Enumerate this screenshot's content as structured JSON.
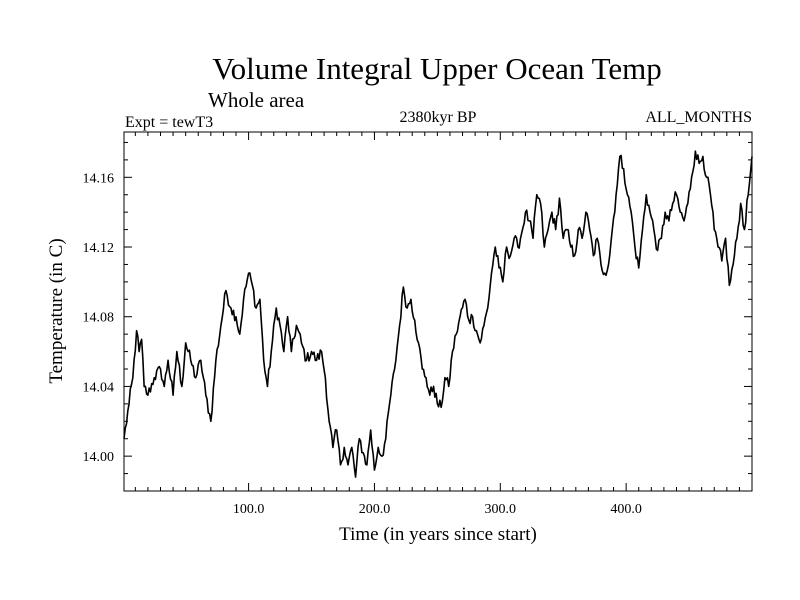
{
  "chart_data": {
    "type": "line",
    "title": "Volume Integral Upper Ocean Temp",
    "subtitle": "Whole area",
    "expt_label": "Expt = tewT3",
    "center_label": "2380kyr BP",
    "period_label": "ALL_MONTHS",
    "xlabel": "Time (in years since start)",
    "ylabel": "Temperature (in C)",
    "xlim": [
      1,
      500
    ],
    "ylim": [
      13.98,
      14.186
    ],
    "x_ticks": [
      100,
      200,
      300,
      400
    ],
    "x_tick_labels": [
      "100.0",
      "200.0",
      "300.0",
      "400.0"
    ],
    "y_ticks": [
      14.0,
      14.04,
      14.08,
      14.12,
      14.16
    ],
    "y_tick_labels": [
      "14.00",
      "14.04",
      "14.08",
      "14.12",
      "14.16"
    ],
    "series": [
      {
        "name": "Temperature",
        "color": "#000000",
        "key_points": [
          [
            1,
            14.01
          ],
          [
            5,
            14.03
          ],
          [
            8,
            14.045
          ],
          [
            11,
            14.072
          ],
          [
            13,
            14.06
          ],
          [
            15,
            14.067
          ],
          [
            17,
            14.04
          ],
          [
            20,
            14.035
          ],
          [
            25,
            14.045
          ],
          [
            30,
            14.05
          ],
          [
            33,
            14.04
          ],
          [
            36,
            14.055
          ],
          [
            40,
            14.035
          ],
          [
            43,
            14.06
          ],
          [
            47,
            14.04
          ],
          [
            50,
            14.065
          ],
          [
            54,
            14.055
          ],
          [
            58,
            14.045
          ],
          [
            62,
            14.055
          ],
          [
            66,
            14.035
          ],
          [
            70,
            14.02
          ],
          [
            74,
            14.055
          ],
          [
            78,
            14.075
          ],
          [
            82,
            14.095
          ],
          [
            86,
            14.085
          ],
          [
            90,
            14.08
          ],
          [
            93,
            14.07
          ],
          [
            96,
            14.09
          ],
          [
            100,
            14.105
          ],
          [
            103,
            14.098
          ],
          [
            106,
            14.085
          ],
          [
            109,
            14.09
          ],
          [
            112,
            14.055
          ],
          [
            115,
            14.04
          ],
          [
            118,
            14.06
          ],
          [
            122,
            14.085
          ],
          [
            125,
            14.075
          ],
          [
            128,
            14.06
          ],
          [
            131,
            14.08
          ],
          [
            134,
            14.06
          ],
          [
            138,
            14.075
          ],
          [
            142,
            14.065
          ],
          [
            146,
            14.055
          ],
          [
            150,
            14.06
          ],
          [
            154,
            14.055
          ],
          [
            158,
            14.06
          ],
          [
            161,
            14.045
          ],
          [
            164,
            14.02
          ],
          [
            167,
            14.005
          ],
          [
            170,
            14.015
          ],
          [
            173,
            13.995
          ],
          [
            176,
            14.005
          ],
          [
            179,
            13.995
          ],
          [
            182,
            14.005
          ],
          [
            185,
            13.988
          ],
          [
            188,
            14.01
          ],
          [
            191,
            14.002
          ],
          [
            194,
            13.995
          ],
          [
            197,
            14.015
          ],
          [
            200,
            13.992
          ],
          [
            203,
            14.005
          ],
          [
            206,
            14.0
          ],
          [
            209,
            14.01
          ],
          [
            212,
            14.03
          ],
          [
            216,
            14.05
          ],
          [
            220,
            14.075
          ],
          [
            223,
            14.097
          ],
          [
            226,
            14.085
          ],
          [
            229,
            14.09
          ],
          [
            232,
            14.078
          ],
          [
            235,
            14.065
          ],
          [
            238,
            14.05
          ],
          [
            241,
            14.045
          ],
          [
            244,
            14.035
          ],
          [
            247,
            14.04
          ],
          [
            250,
            14.03
          ],
          [
            253,
            14.028
          ],
          [
            256,
            14.045
          ],
          [
            259,
            14.04
          ],
          [
            262,
            14.06
          ],
          [
            265,
            14.07
          ],
          [
            268,
            14.08
          ],
          [
            272,
            14.09
          ],
          [
            275,
            14.078
          ],
          [
            278,
            14.08
          ],
          [
            281,
            14.072
          ],
          [
            284,
            14.065
          ],
          [
            287,
            14.075
          ],
          [
            290,
            14.085
          ],
          [
            293,
            14.105
          ],
          [
            296,
            14.12
          ],
          [
            299,
            14.108
          ],
          [
            302,
            14.1
          ],
          [
            305,
            14.12
          ],
          [
            308,
            14.115
          ],
          [
            311,
            14.125
          ],
          [
            314,
            14.12
          ],
          [
            317,
            14.128
          ],
          [
            320,
            14.14
          ],
          [
            323,
            14.135
          ],
          [
            326,
            14.125
          ],
          [
            329,
            14.15
          ],
          [
            332,
            14.145
          ],
          [
            335,
            14.12
          ],
          [
            338,
            14.13
          ],
          [
            341,
            14.14
          ],
          [
            344,
            14.13
          ],
          [
            347,
            14.148
          ],
          [
            350,
            14.125
          ],
          [
            353,
            14.13
          ],
          [
            356,
            14.12
          ],
          [
            359,
            14.115
          ],
          [
            362,
            14.13
          ],
          [
            365,
            14.125
          ],
          [
            368,
            14.14
          ],
          [
            371,
            14.13
          ],
          [
            374,
            14.115
          ],
          [
            377,
            14.125
          ],
          [
            380,
            14.11
          ],
          [
            383,
            14.105
          ],
          [
            386,
            14.11
          ],
          [
            389,
            14.13
          ],
          [
            392,
            14.15
          ],
          [
            395,
            14.172
          ],
          [
            398,
            14.165
          ],
          [
            401,
            14.15
          ],
          [
            404,
            14.14
          ],
          [
            407,
            14.12
          ],
          [
            410,
            14.108
          ],
          [
            413,
            14.13
          ],
          [
            416,
            14.15
          ],
          [
            419,
            14.14
          ],
          [
            422,
            14.13
          ],
          [
            425,
            14.118
          ],
          [
            428,
            14.125
          ],
          [
            431,
            14.14
          ],
          [
            434,
            14.135
          ],
          [
            437,
            14.145
          ],
          [
            440,
            14.15
          ],
          [
            443,
            14.14
          ],
          [
            446,
            14.135
          ],
          [
            449,
            14.145
          ],
          [
            452,
            14.16
          ],
          [
            455,
            14.175
          ],
          [
            458,
            14.168
          ],
          [
            461,
            14.172
          ],
          [
            464,
            14.16
          ],
          [
            467,
            14.15
          ],
          [
            470,
            14.13
          ],
          [
            473,
            14.12
          ],
          [
            476,
            14.112
          ],
          [
            479,
            14.125
          ],
          [
            482,
            14.098
          ],
          [
            485,
            14.11
          ],
          [
            488,
            14.125
          ],
          [
            491,
            14.145
          ],
          [
            494,
            14.13
          ],
          [
            497,
            14.15
          ],
          [
            500,
            14.172
          ]
        ]
      }
    ]
  }
}
